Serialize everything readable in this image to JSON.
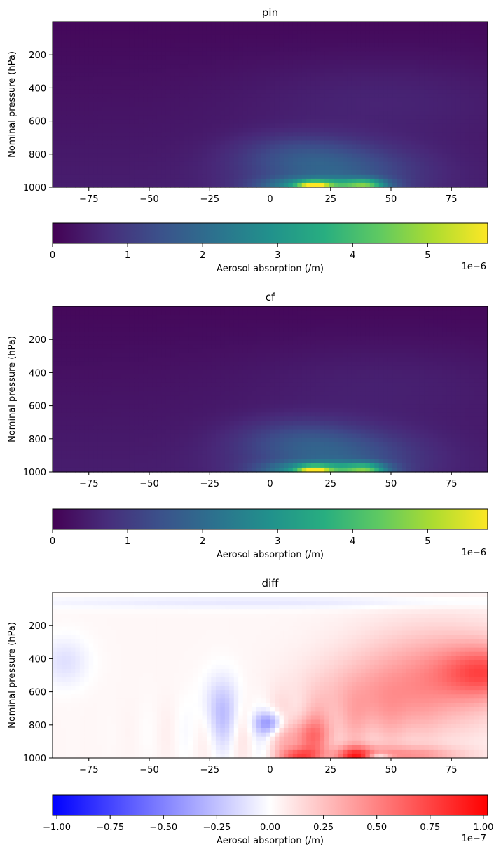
{
  "chart_data": [
    {
      "type": "heatmap",
      "title": "pin",
      "xlabel": "",
      "ylabel": "Nominal pressure (hPa)",
      "xlim": [
        -90,
        90
      ],
      "ylim": [
        1000,
        0
      ],
      "xticks": [
        "−75",
        "−50",
        "−25",
        "0",
        "25",
        "50",
        "75"
      ],
      "xtick_values": [
        -75,
        -50,
        -25,
        0,
        25,
        50,
        75
      ],
      "yticks": [
        "200",
        "400",
        "600",
        "800",
        "1000"
      ],
      "ytick_values": [
        200,
        400,
        600,
        800,
        1000
      ],
      "colormap": "viridis",
      "value_range": [
        0,
        5.8e-06
      ],
      "field": "absorbing aerosol maximum near surface at 10–45 latitude, peak about 5.8e-6 near 1000 hPa, decaying upward to ~650 hPa",
      "colorbar": {
        "label": "Aerosol absorption (/m)",
        "ticks": [
          "0",
          "1",
          "2",
          "3",
          "4",
          "5"
        ],
        "tick_values": [
          0,
          1,
          2,
          3,
          4,
          5
        ],
        "range": [
          0,
          5.8
        ],
        "offset": "1e−6",
        "orientation": "horizontal"
      }
    },
    {
      "type": "heatmap",
      "title": "cf",
      "xlabel": "",
      "ylabel": "Nominal pressure (hPa)",
      "xlim": [
        -90,
        90
      ],
      "ylim": [
        1000,
        0
      ],
      "xticks": [
        "−75",
        "−50",
        "−25",
        "0",
        "25",
        "50",
        "75"
      ],
      "xtick_values": [
        -75,
        -50,
        -25,
        0,
        25,
        50,
        75
      ],
      "yticks": [
        "200",
        "400",
        "600",
        "800",
        "1000"
      ],
      "ytick_values": [
        200,
        400,
        600,
        800,
        1000
      ],
      "colormap": "viridis",
      "value_range": [
        0,
        5.8e-06
      ],
      "field": "same pattern as pin with slightly lower values aloft",
      "colorbar": {
        "label": "Aerosol absorption (/m)",
        "ticks": [
          "0",
          "1",
          "2",
          "3",
          "4",
          "5"
        ],
        "tick_values": [
          0,
          1,
          2,
          3,
          4,
          5
        ],
        "range": [
          0,
          5.8
        ],
        "offset": "1e−6",
        "orientation": "horizontal"
      }
    },
    {
      "type": "heatmap",
      "title": "diff",
      "xlabel": "",
      "ylabel": "Nominal pressure (hPa)",
      "xlim": [
        -90,
        90
      ],
      "ylim": [
        1000,
        0
      ],
      "xticks": [
        "−75",
        "−50",
        "−25",
        "0",
        "25",
        "50",
        "75"
      ],
      "xtick_values": [
        -75,
        -50,
        -25,
        0,
        25,
        50,
        75
      ],
      "yticks": [
        "200",
        "400",
        "600",
        "800",
        "1000"
      ],
      "ytick_values": [
        200,
        400,
        600,
        800,
        1000
      ],
      "colormap": "bwr",
      "value_range": [
        -1e-07,
        1e-07
      ],
      "field": "positive (red) differences over northern latitudes 20–90 and near surface 10–40, negative (blue) patches near -20 and 0 at 700–900 hPa",
      "colorbar": {
        "label": "Aerosol absorption (/m)",
        "ticks": [
          "−1.00",
          "−0.75",
          "−0.50",
          "−0.25",
          "0.00",
          "0.25",
          "0.50",
          "0.75",
          "1.00"
        ],
        "tick_values": [
          -1.0,
          -0.75,
          -0.5,
          -0.25,
          0,
          0.25,
          0.5,
          0.75,
          1.0
        ],
        "range": [
          -1.02,
          1.02
        ],
        "offset": "1e−7",
        "orientation": "horizontal"
      }
    }
  ]
}
